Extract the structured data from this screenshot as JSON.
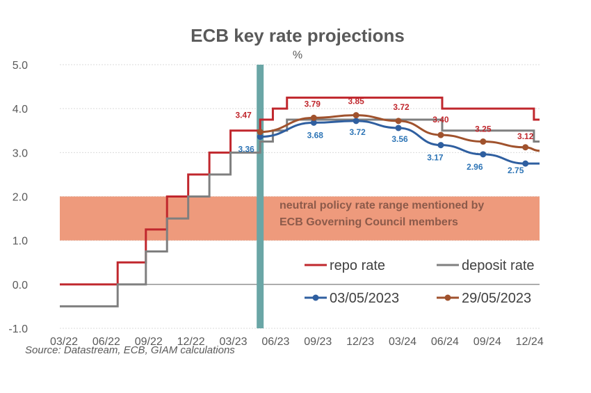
{
  "chart_data": {
    "type": "line",
    "title": "ECB key rate projections",
    "unit": "%",
    "source": "Source: Datastream, ECB, GIAM calculations",
    "ylim": [
      -1.0,
      5.0
    ],
    "yticks": [
      "5.0",
      "4.0",
      "3.0",
      "2.0",
      "1.0",
      "0.0",
      "-1.0"
    ],
    "ytick_values": [
      5,
      4,
      3,
      2,
      1,
      0,
      -1
    ],
    "xlim": [
      0,
      34
    ],
    "xticks": [
      "03/22",
      "06/22",
      "09/22",
      "12/22",
      "03/23",
      "06/23",
      "09/23",
      "12/23",
      "03/24",
      "06/24",
      "09/24",
      "12/24"
    ],
    "xtick_values": [
      0,
      3,
      6,
      9,
      12,
      15,
      18,
      21,
      24,
      27,
      30,
      33
    ],
    "grid": true,
    "band": {
      "from": 1.0,
      "to": 2.0,
      "color": "#ee9a7c",
      "text": [
        "neutral policy rate range mentioned by",
        "ECB Governing Council members"
      ]
    },
    "vline": {
      "x": 14.2,
      "color": "#6aa6a6"
    },
    "series": [
      {
        "name": "repo rate",
        "color": "#c0272d",
        "kind": "step",
        "x": [
          0,
          4.1,
          6.1,
          7.6,
          9.1,
          10.6,
          12.1,
          14.2,
          15.1,
          16.1,
          27.1,
          33.6,
          34
        ],
        "y": [
          0,
          0.5,
          1.25,
          2.0,
          2.5,
          3.0,
          3.5,
          3.75,
          4.0,
          4.25,
          4.0,
          3.75,
          3.75
        ]
      },
      {
        "name": "deposit rate",
        "color": "#7f7f7f",
        "kind": "step",
        "x": [
          0,
          4.1,
          6.1,
          7.6,
          9.1,
          10.6,
          12.1,
          14.2,
          15.1,
          16.1,
          27.1,
          33.6,
          34
        ],
        "y": [
          -0.5,
          0,
          0.75,
          1.5,
          2.0,
          2.5,
          3.0,
          3.25,
          3.5,
          3.75,
          3.5,
          3.25,
          3.25
        ]
      },
      {
        "name": "03/05/2023",
        "color": "#2f5fa0",
        "kind": "marker",
        "x": [
          14.2,
          18,
          21,
          24,
          27,
          30,
          33,
          34
        ],
        "y": [
          3.36,
          3.68,
          3.72,
          3.56,
          3.17,
          2.96,
          2.75,
          2.75
        ],
        "labels": [
          "3.36",
          "3.68",
          "3.72",
          "3.56",
          "3.17",
          "2.96",
          "2.75",
          ""
        ]
      },
      {
        "name": "29/05/2023",
        "color": "#a0522d",
        "kind": "marker",
        "x": [
          14.2,
          18,
          21,
          24,
          27,
          30,
          33,
          34
        ],
        "y": [
          3.47,
          3.79,
          3.85,
          3.72,
          3.4,
          3.25,
          3.12,
          3.04
        ],
        "labels": [
          "3.47",
          "3.79",
          "3.85",
          "3.72",
          "3.40",
          "3.25",
          "3.12",
          ""
        ]
      }
    ],
    "legend": {
      "placement": "lower-right"
    }
  }
}
